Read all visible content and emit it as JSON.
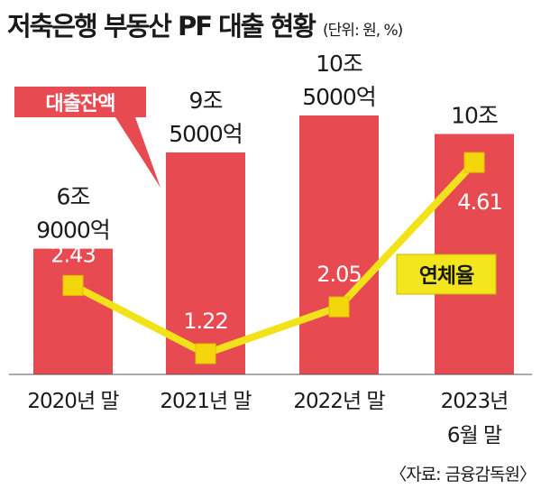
{
  "header": {
    "title": "저축은행 부동산 PF 대출 현황",
    "unit": "(단위: 원, %)"
  },
  "source": "〈자료: 금융감독원〉",
  "colors": {
    "bar": "#e84a52",
    "line": "#f2e21a",
    "marker": "#f4d60c",
    "callout_bg": "#e84a52",
    "callout_text": "#ffffff",
    "label_bg": "#f4e61c"
  },
  "chart_data": {
    "type": "bar",
    "categories": [
      [
        "2020년 말"
      ],
      [
        "2021년 말"
      ],
      [
        "2022년 말"
      ],
      [
        "2023년",
        "6월 말"
      ]
    ],
    "bar_values": [
      6.9,
      9.5,
      10.5,
      10.0
    ],
    "bar_labels": [
      [
        "6조",
        "9000억"
      ],
      [
        "9조",
        "5000억"
      ],
      [
        "10조",
        "5000억"
      ],
      [
        "10조"
      ]
    ],
    "bar_series_label": "대출잔액",
    "line_values": [
      2.43,
      1.22,
      2.05,
      4.61
    ],
    "line_labels": [
      "2.43",
      "1.22",
      "2.05",
      "4.61"
    ],
    "line_series_label": "연체율"
  }
}
